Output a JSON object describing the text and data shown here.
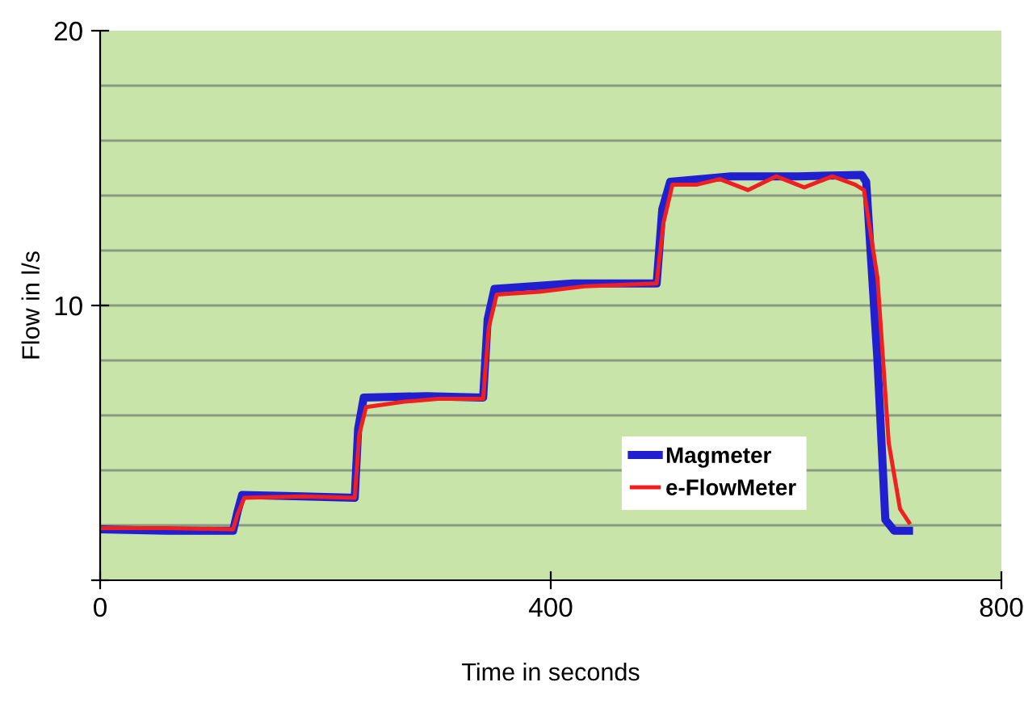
{
  "chart_data": {
    "type": "line",
    "xlabel": "Time in seconds",
    "ylabel": "Flow in l/s",
    "xlim": [
      0,
      800
    ],
    "xticks": [
      0,
      400,
      800
    ],
    "ylim": [
      0,
      20
    ],
    "yticks": [
      {
        "value": 0,
        "label": null
      },
      10,
      20
    ],
    "grid": "y",
    "legend": "bottom right",
    "line_style": "solid",
    "series": [
      {
        "name": "Magmeter",
        "color": "#2020d0",
        "x": [
          0,
          60,
          118,
          122,
          126,
          180,
          226,
          229,
          234,
          290,
          340,
          344,
          350,
          420,
          494,
          499,
          506,
          560,
          620,
          676,
          680,
          690,
          697,
          705,
          718
        ],
        "values": [
          1.85,
          1.8,
          1.8,
          2.5,
          3.1,
          3.05,
          3.0,
          5.5,
          6.65,
          6.7,
          6.65,
          9.5,
          10.6,
          10.8,
          10.8,
          13.5,
          14.5,
          14.7,
          14.7,
          14.75,
          14.5,
          8.0,
          2.2,
          1.8,
          1.8
        ]
      },
      {
        "name": "e-FlowMeter",
        "color": "#f02020",
        "x": [
          0,
          60,
          118,
          122,
          128,
          180,
          226,
          230,
          236,
          270,
          300,
          340,
          345,
          352,
          390,
          430,
          494,
          500,
          508,
          530,
          550,
          575,
          600,
          625,
          650,
          670,
          678,
          690,
          700,
          710,
          718
        ],
        "values": [
          1.9,
          1.9,
          1.85,
          2.4,
          3.0,
          3.05,
          3.0,
          5.3,
          6.3,
          6.5,
          6.6,
          6.6,
          9.2,
          10.4,
          10.5,
          10.7,
          10.8,
          13.0,
          14.4,
          14.4,
          14.6,
          14.2,
          14.7,
          14.3,
          14.7,
          14.4,
          14.2,
          11.0,
          5.0,
          2.6,
          2.1
        ]
      }
    ]
  }
}
